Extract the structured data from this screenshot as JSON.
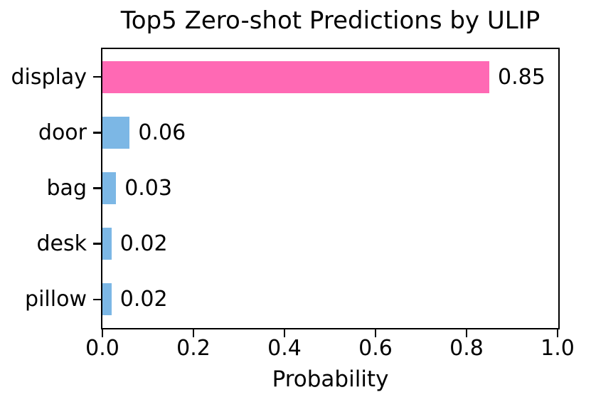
{
  "chart_data": {
    "type": "bar",
    "orientation": "horizontal",
    "title": "Top5 Zero-shot Predictions by ULIP",
    "categories": [
      "display",
      "door",
      "bag",
      "desk",
      "pillow"
    ],
    "values": [
      0.85,
      0.06,
      0.03,
      0.02,
      0.02
    ],
    "value_labels": [
      "0.85",
      "0.06",
      "0.03",
      "0.02",
      "0.02"
    ],
    "xlabel": "Probability",
    "ylabel": "",
    "xlim": [
      0.0,
      1.0
    ],
    "xticks": [
      0.0,
      0.2,
      0.4,
      0.6,
      0.8,
      1.0
    ],
    "xtick_labels": [
      "0.0",
      "0.2",
      "0.4",
      "0.6",
      "0.8",
      "1.0"
    ],
    "grid": false,
    "legend": "none",
    "bar_colors": [
      "#FF69B4",
      "#7CB7E5",
      "#7CB7E5",
      "#7CB7E5",
      "#7CB7E5"
    ],
    "colors": {
      "highlight_bar": "#FF69B4",
      "other_bars": "#7CB7E5",
      "spine": "#000000",
      "text": "#000000",
      "background": "#FFFFFF"
    }
  }
}
